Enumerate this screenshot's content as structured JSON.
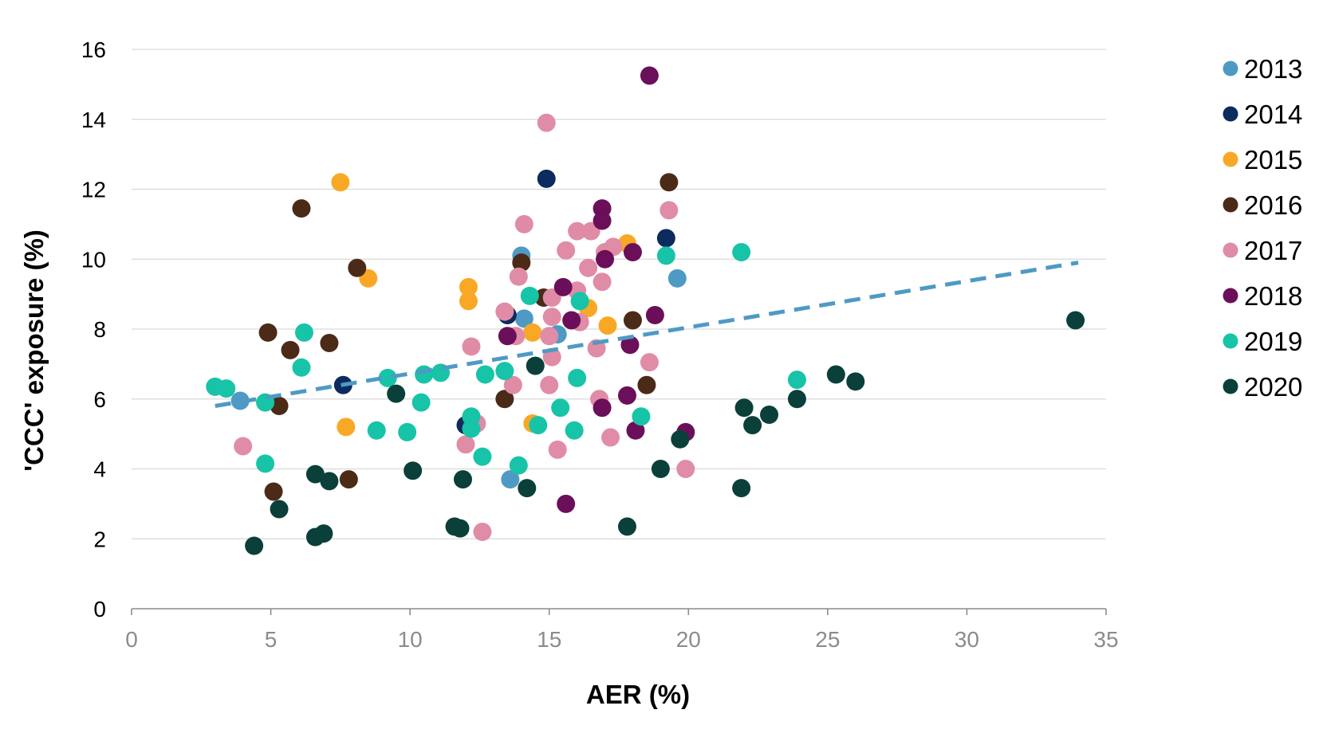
{
  "chart_data": {
    "type": "scatter",
    "title": "",
    "xlabel": "AER (%)",
    "ylabel": "'CCC' exposure (%)",
    "xlim": [
      0,
      35
    ],
    "ylim": [
      0,
      16
    ],
    "xticks": [
      "0",
      "5",
      "10",
      "15",
      "20",
      "25",
      "30",
      "35"
    ],
    "yticks": [
      "0",
      "2",
      "4",
      "6",
      "8",
      "10",
      "12",
      "14",
      "16"
    ],
    "grid": "horizontal",
    "legend": "right",
    "trendline": {
      "style": "dashed",
      "color": "#4e9ac4",
      "from": [
        3,
        5.8
      ],
      "to": [
        34,
        9.9
      ]
    },
    "series": [
      {
        "name": "2013",
        "color": "#4e9ac4",
        "points": [
          [
            3.9,
            5.95
          ],
          [
            13.6,
            3.7
          ],
          [
            14.0,
            10.1
          ],
          [
            14.1,
            8.3
          ],
          [
            15.3,
            7.85
          ],
          [
            19.6,
            9.45
          ]
        ]
      },
      {
        "name": "2014",
        "color": "#0c2b5e",
        "points": [
          [
            7.6,
            6.4
          ],
          [
            12.0,
            5.25
          ],
          [
            13.5,
            8.4
          ],
          [
            14.9,
            12.3
          ],
          [
            19.2,
            10.6
          ]
        ]
      },
      {
        "name": "2015",
        "color": "#f9a825",
        "points": [
          [
            7.5,
            12.2
          ],
          [
            7.7,
            5.2
          ],
          [
            8.5,
            9.45
          ],
          [
            12.1,
            9.2
          ],
          [
            12.1,
            8.8
          ],
          [
            14.4,
            7.9
          ],
          [
            14.4,
            5.3
          ],
          [
            16.4,
            8.6
          ],
          [
            17.1,
            8.1
          ],
          [
            17.8,
            10.45
          ]
        ]
      },
      {
        "name": "2016",
        "color": "#4b2a17",
        "points": [
          [
            4.9,
            7.9
          ],
          [
            5.1,
            3.35
          ],
          [
            5.3,
            5.8
          ],
          [
            5.7,
            7.4
          ],
          [
            6.1,
            11.45
          ],
          [
            7.1,
            7.6
          ],
          [
            7.8,
            3.7
          ],
          [
            8.1,
            9.75
          ],
          [
            13.4,
            6.0
          ],
          [
            14.0,
            9.9
          ],
          [
            14.8,
            8.9
          ],
          [
            18.0,
            8.25
          ],
          [
            18.5,
            6.4
          ],
          [
            19.3,
            12.2
          ]
        ]
      },
      {
        "name": "2017",
        "color": "#e08ca6",
        "points": [
          [
            4.0,
            4.65
          ],
          [
            12.0,
            4.7
          ],
          [
            12.2,
            7.5
          ],
          [
            12.4,
            5.3
          ],
          [
            12.6,
            2.2
          ],
          [
            13.4,
            8.5
          ],
          [
            13.7,
            6.4
          ],
          [
            13.8,
            7.8
          ],
          [
            13.9,
            9.5
          ],
          [
            14.1,
            11.0
          ],
          [
            14.9,
            13.9
          ],
          [
            15.0,
            7.8
          ],
          [
            15.0,
            6.4
          ],
          [
            15.1,
            8.9
          ],
          [
            15.1,
            8.35
          ],
          [
            15.1,
            7.2
          ],
          [
            15.3,
            4.55
          ],
          [
            15.6,
            10.25
          ],
          [
            16.0,
            9.1
          ],
          [
            16.0,
            10.8
          ],
          [
            16.1,
            8.2
          ],
          [
            16.4,
            9.75
          ],
          [
            16.5,
            10.8
          ],
          [
            16.7,
            7.45
          ],
          [
            16.8,
            6.0
          ],
          [
            16.9,
            9.35
          ],
          [
            17.0,
            10.2
          ],
          [
            17.2,
            4.9
          ],
          [
            17.3,
            10.35
          ],
          [
            18.6,
            7.05
          ],
          [
            19.3,
            11.4
          ],
          [
            19.9,
            4.0
          ]
        ]
      },
      {
        "name": "2018",
        "color": "#6b0f5a",
        "points": [
          [
            13.5,
            7.8
          ],
          [
            15.5,
            9.2
          ],
          [
            15.6,
            3.0
          ],
          [
            15.8,
            8.25
          ],
          [
            16.9,
            11.45
          ],
          [
            16.9,
            11.1
          ],
          [
            16.9,
            5.75
          ],
          [
            17.0,
            10.0
          ],
          [
            17.8,
            6.1
          ],
          [
            17.9,
            7.55
          ],
          [
            18.0,
            10.2
          ],
          [
            18.1,
            5.1
          ],
          [
            18.6,
            15.25
          ],
          [
            18.8,
            8.4
          ],
          [
            19.9,
            5.05
          ]
        ]
      },
      {
        "name": "2019",
        "color": "#17c4a7",
        "points": [
          [
            3.0,
            6.35
          ],
          [
            3.4,
            6.3
          ],
          [
            4.8,
            5.9
          ],
          [
            4.8,
            4.15
          ],
          [
            6.1,
            6.9
          ],
          [
            6.2,
            7.9
          ],
          [
            8.8,
            5.1
          ],
          [
            9.2,
            6.6
          ],
          [
            9.9,
            5.05
          ],
          [
            10.4,
            5.9
          ],
          [
            10.5,
            6.7
          ],
          [
            11.1,
            6.75
          ],
          [
            12.2,
            5.15
          ],
          [
            12.2,
            5.5
          ],
          [
            12.6,
            4.35
          ],
          [
            12.7,
            6.7
          ],
          [
            13.4,
            6.8
          ],
          [
            13.9,
            4.1
          ],
          [
            14.3,
            8.95
          ],
          [
            14.6,
            5.25
          ],
          [
            15.4,
            5.75
          ],
          [
            15.9,
            5.1
          ],
          [
            16.0,
            6.6
          ],
          [
            16.1,
            8.8
          ],
          [
            18.3,
            5.5
          ],
          [
            19.2,
            10.1
          ],
          [
            21.9,
            10.2
          ],
          [
            23.9,
            6.55
          ]
        ]
      },
      {
        "name": "2020",
        "color": "#0a4039",
        "points": [
          [
            4.4,
            1.8
          ],
          [
            5.3,
            2.85
          ],
          [
            6.6,
            2.05
          ],
          [
            6.6,
            3.85
          ],
          [
            6.9,
            2.15
          ],
          [
            7.1,
            3.65
          ],
          [
            9.5,
            6.15
          ],
          [
            10.1,
            3.95
          ],
          [
            11.6,
            2.35
          ],
          [
            11.8,
            2.3
          ],
          [
            11.9,
            3.7
          ],
          [
            14.2,
            3.45
          ],
          [
            14.5,
            6.95
          ],
          [
            17.8,
            2.35
          ],
          [
            19.0,
            4.0
          ],
          [
            19.7,
            4.85
          ],
          [
            21.9,
            3.45
          ],
          [
            22.0,
            5.75
          ],
          [
            22.3,
            5.25
          ],
          [
            22.9,
            5.55
          ],
          [
            23.9,
            6.0
          ],
          [
            25.3,
            6.7
          ],
          [
            26.0,
            6.5
          ],
          [
            33.9,
            8.25
          ]
        ]
      }
    ]
  }
}
